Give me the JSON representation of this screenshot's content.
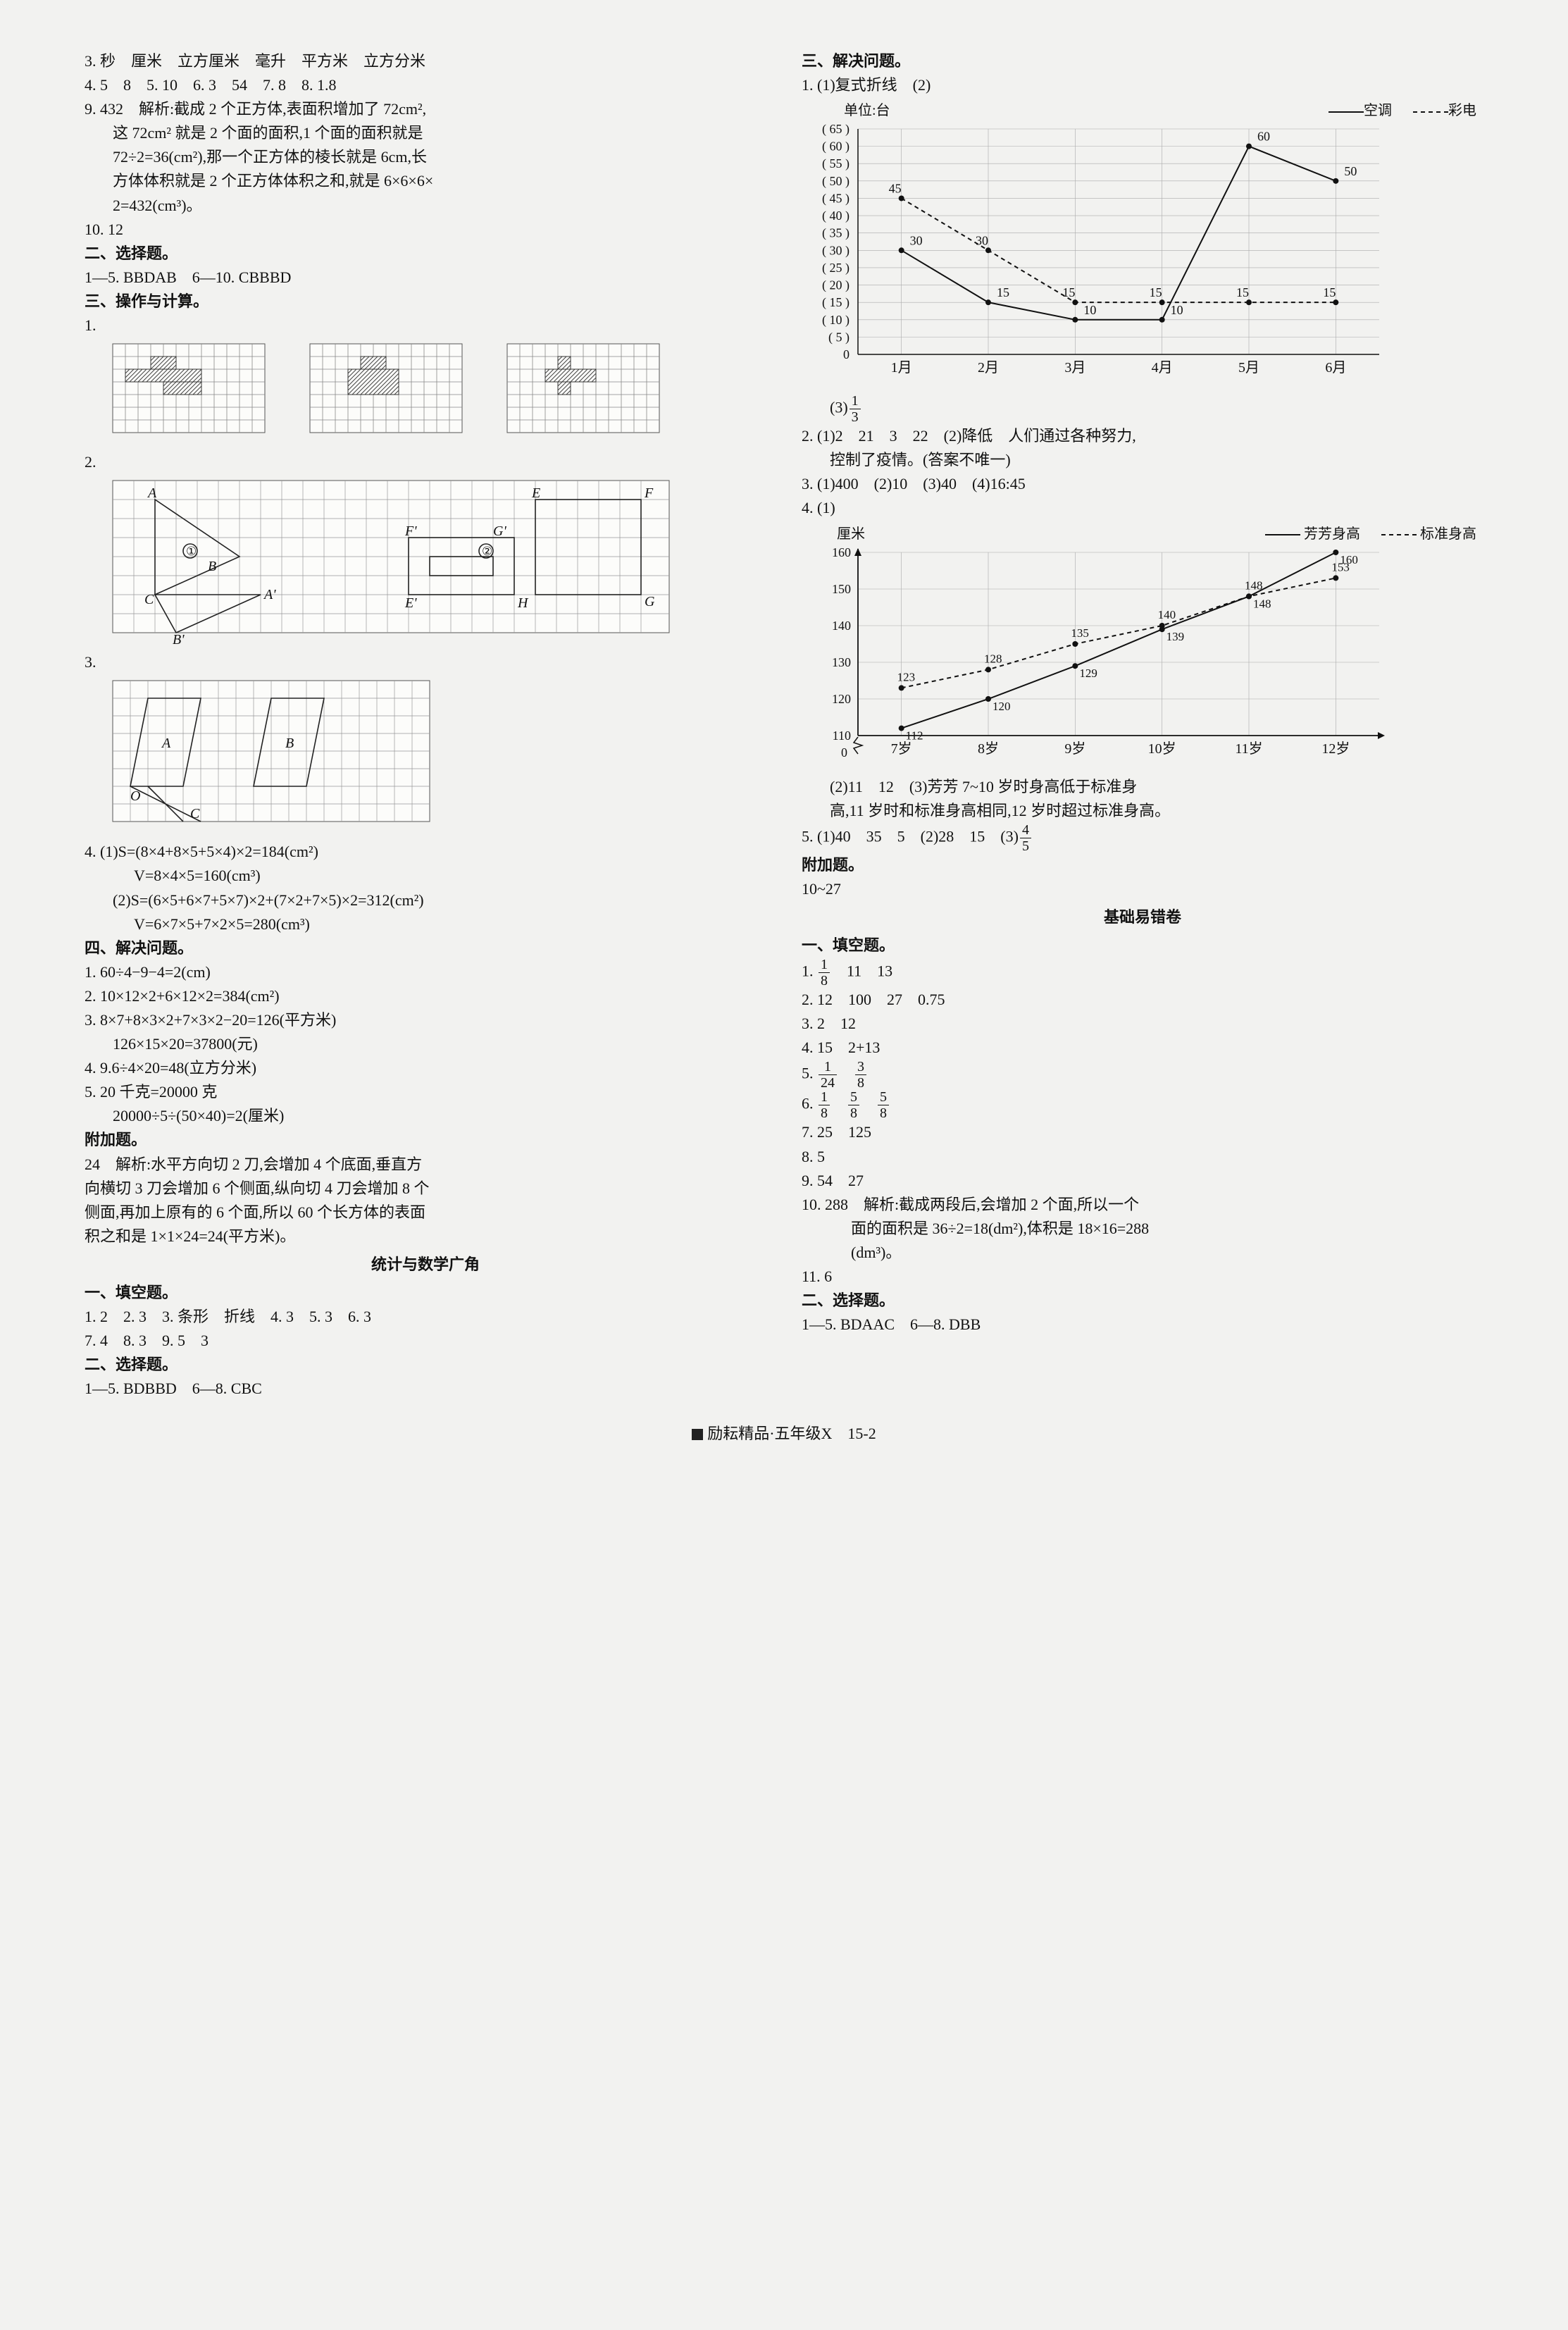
{
  "leftCol": {
    "line3": "3. 秒　厘米　立方厘米　毫升　平方米　立方分米",
    "line4": "4. 5　8　5. 10　6. 3　54　7. 8　8. 1.8",
    "line9a": "9. 432　解析:截成 2 个正方体,表面积增加了 72cm²,",
    "line9b": "这 72cm² 就是 2 个面的面积,1 个面的面积就是",
    "line9c": "72÷2=36(cm²),那一个正方体的棱长就是 6cm,长",
    "line9d": "方体体积就是 2 个正方体体积之和,就是 6×6×6×",
    "line9e": "2=432(cm³)。",
    "line10": "10. 12",
    "choiceH": "二、选择题。",
    "choice": "1—5. BBDAB　6—10. CBBBD",
    "opH": "三、操作与计算。",
    "op1": "1.",
    "op2": "2.",
    "op3": "3.",
    "q4": {
      "a": "4. (1)S=(8×4+8×5+5×4)×2=184(cm²)",
      "b": "V=8×4×5=160(cm³)",
      "c": "(2)S=(6×5+6×7+5×7)×2+(7×2+7×5)×2=312(cm²)",
      "d": "V=6×7×5+7×2×5=280(cm³)"
    },
    "solveH": "四、解决问题。",
    "s1": "1. 60÷4−9−4=2(cm)",
    "s2": "2. 10×12×2+6×12×2=384(cm²)",
    "s3a": "3. 8×7+8×3×2+7×3×2−20=126(平方米)",
    "s3b": "126×15×20=37800(元)",
    "s4": "4. 9.6÷4×20=48(立方分米)",
    "s5a": "5. 20 千克=20000 克",
    "s5b": "20000÷5÷(50×40)=2(厘米)",
    "extraH": "附加题。",
    "extra1": "24　解析:水平方向切 2 刀,会增加 4 个底面,垂直方",
    "extra2": "向横切 3 刀会增加 6 个侧面,纵向切 4 刀会增加 8 个",
    "extra3": "侧面,再加上原有的 6 个面,所以 60 个长方体的表面",
    "extra4": "积之和是 1×1×24=24(平方米)。",
    "statH": "统计与数学广角",
    "fillH": "一、填空题。",
    "f1": "1. 2　2. 3　3. 条形　折线　4. 3　5. 3　6. 3",
    "f2": "7. 4　8. 3　9. 5　3",
    "choice2H": "二、选择题。",
    "choice2": "1—5. BDBBD　6—8. CBC"
  },
  "rightCol": {
    "solveH": "三、解决问题。",
    "r1a": "1. (1)复式折线　(2)",
    "chart1": {
      "unit": "单位:台",
      "leg1": "空调",
      "leg2": "彩电",
      "ymin": 0,
      "ymax": 65,
      "ystep": 5,
      "months": [
        "1月",
        "2月",
        "3月",
        "4月",
        "5月",
        "6月"
      ],
      "solid": [
        30,
        15,
        10,
        10,
        60,
        50
      ],
      "dash": [
        45,
        30,
        15,
        15,
        15,
        15
      ],
      "labelsSolid": [
        "30",
        "15",
        "10",
        "10",
        "60",
        "50"
      ],
      "labelsDash": [
        "45",
        "30",
        "15",
        "15",
        "15",
        "15"
      ],
      "extraSolidLabel": "15",
      "extraAfterDash": "15"
    },
    "r1c_prefix": "(3)",
    "r1c_num": "1",
    "r1c_den": "3",
    "r2a": "2. (1)2　21　3　22　(2)降低　人们通过各种努力,",
    "r2b": "控制了疫情。(答案不唯一)",
    "r3": "3. (1)400　(2)10　(3)40　(4)16:45",
    "r4a": "4. (1)",
    "chart2": {
      "ylabel": "厘米",
      "leg1": "芳芳身高",
      "leg2": "标准身高",
      "ymin": 110,
      "ymax": 160,
      "ystep": 10,
      "ages": [
        "7岁",
        "8岁",
        "9岁",
        "10岁",
        "11岁",
        "12岁"
      ],
      "solid": [
        112,
        120,
        129,
        139,
        148,
        160
      ],
      "dash": [
        123,
        128,
        135,
        140,
        148,
        153
      ],
      "labelsSolid": [
        "112",
        "120",
        "129",
        "139",
        "148",
        "160"
      ],
      "labelsDash": [
        "123",
        "128",
        "135",
        "140",
        "148",
        "153"
      ]
    },
    "r4b": "(2)11　12　(3)芳芳 7~10 岁时身高低于标准身",
    "r4c": "高,11 岁时和标准身高相同,12 岁时超过标准身高。",
    "r5_prefix": "5. (1)40　35　5　(2)28　15　(3)",
    "r5_num": "4",
    "r5_den": "5",
    "extraH": "附加题。",
    "extra": "10~27",
    "basicH": "基础易错卷",
    "fillH": "一、填空题。",
    "b1_prefix": "1. ",
    "b1_num": "1",
    "b1_den": "8",
    "b1_rest": "　11　13",
    "b2": "2. 12　100　27　0.75",
    "b3": "3. 2　12",
    "b4": "4. 15　2+13",
    "b5_prefix": "5. ",
    "b5a_n": "1",
    "b5a_d": "24",
    "b5b_n": "3",
    "b5b_d": "8",
    "b6_prefix": "6. ",
    "b6a_n": "1",
    "b6a_d": "8",
    "b6b_n": "5",
    "b6b_d": "8",
    "b6c_n": "5",
    "b6c_d": "8",
    "b7": "7. 25　125",
    "b8": "8. 5",
    "b9": "9. 54　27",
    "b10a": "10. 288　解析:截成两段后,会增加 2 个面,所以一个",
    "b10b": "面的面积是 36÷2=18(dm²),体积是 18×16=288",
    "b10c": "(dm³)。",
    "b11": "11. 6",
    "choiceH": "二、选择题。",
    "choice": "1—5. BDAAC　6—8. DBB"
  },
  "footer": "励耘精品·五年级X　15-2",
  "style": {
    "gridColor": "#666",
    "hatch": "#444",
    "paperBg": "#f2f2f0",
    "gridBg": "#fcfcfa"
  }
}
